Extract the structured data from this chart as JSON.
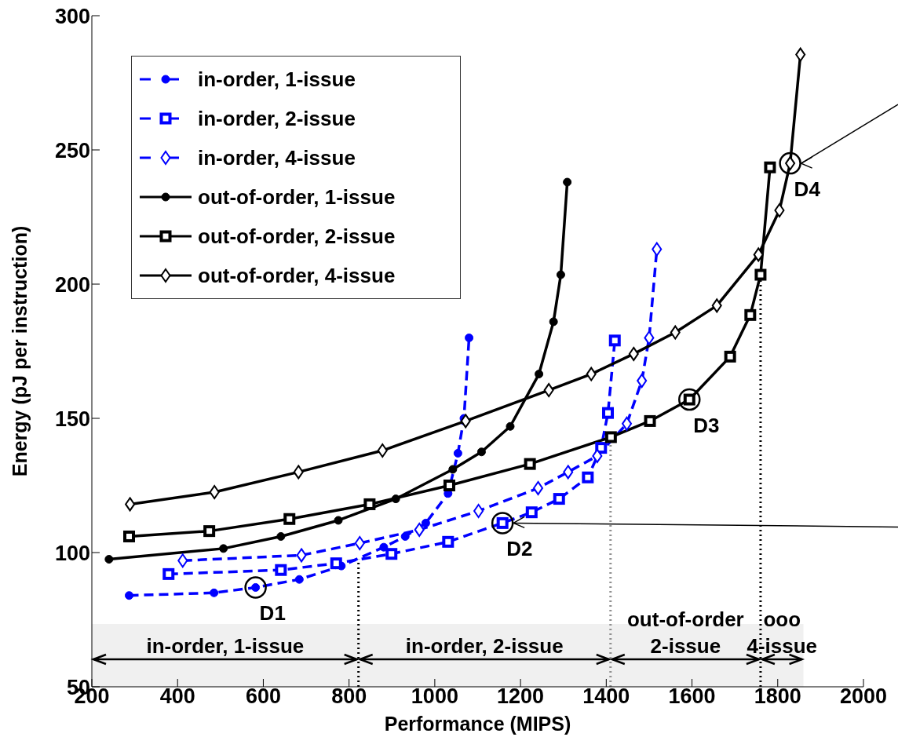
{
  "chart_data": {
    "type": "line",
    "xlabel": "Performance (MIPS)",
    "ylabel": "Energy (pJ per instruction)",
    "xlim": [
      200,
      2000
    ],
    "xticks": [
      200,
      400,
      600,
      800,
      1000,
      1200,
      1400,
      1600,
      1800,
      2000
    ],
    "ylim": [
      50,
      300
    ],
    "yticks": [
      50,
      100,
      150,
      200,
      250,
      300
    ],
    "grid": false,
    "legend": "top left",
    "series": [
      {
        "name": "in-order, 1-issue",
        "color": "#0000ff",
        "marker": "circle",
        "line_style": "dashed",
        "x": [
          287,
          485,
          582,
          684,
          782,
          881,
          931,
          979,
          1031,
          1054,
          1068,
          1080
        ],
        "values": [
          84,
          85,
          87,
          90,
          95,
          102,
          106,
          111,
          122,
          137,
          150,
          180
        ]
      },
      {
        "name": "in-order, 2-issue",
        "color": "#0000ff",
        "marker": "square",
        "line_style": "dashed",
        "x": [
          379,
          641,
          770,
          899,
          1031,
          1158,
          1226,
          1290,
          1357,
          1388,
          1404,
          1420
        ],
        "values": [
          92,
          93.5,
          96,
          99.5,
          104,
          111,
          115,
          120,
          128,
          139,
          152,
          179
        ]
      },
      {
        "name": "in-order, 4-issue",
        "color": "#0000ff",
        "marker": "diamond",
        "line_style": "dashed",
        "x": [
          412,
          689,
          825,
          964,
          1102,
          1241,
          1311,
          1379,
          1448,
          1483,
          1500,
          1518
        ],
        "values": [
          97,
          99,
          103.5,
          108.5,
          115.5,
          124,
          130,
          136,
          148,
          164,
          180,
          213
        ]
      },
      {
        "name": "out-of-order, 1-issue",
        "color": "#000000",
        "marker": "circle",
        "line_style": "solid",
        "x": [
          240,
          507,
          641,
          775,
          909,
          1042,
          1109,
          1176,
          1243,
          1277,
          1294,
          1309
        ],
        "values": [
          97.5,
          101.5,
          106,
          112,
          120,
          131,
          137.5,
          147,
          166.5,
          186,
          203.5,
          238
        ]
      },
      {
        "name": "out-of-order, 2-issue",
        "color": "#000000",
        "marker": "square",
        "line_style": "solid",
        "x": [
          287,
          474,
          661,
          848,
          1034,
          1222,
          1411,
          1502,
          1594,
          1689,
          1736,
          1760,
          1782
        ],
        "values": [
          106,
          108,
          112.5,
          118,
          125,
          133,
          143,
          149,
          157,
          173,
          188.5,
          203.5,
          243.5
        ]
      },
      {
        "name": "out-of-order, 4-issue",
        "color": "#000000",
        "marker": "diamond",
        "line_style": "solid",
        "x": [
          289,
          486,
          682,
          878,
          1072,
          1266,
          1365,
          1464,
          1561,
          1658,
          1755,
          1804,
          1829,
          1853
        ],
        "values": [
          118,
          122.5,
          130,
          138,
          149,
          160.5,
          166.5,
          174,
          182,
          192,
          211,
          227.5,
          245,
          285.5
        ]
      }
    ],
    "ref_lines": [
      {
        "axis": "x",
        "value": 822,
        "color": "#000000",
        "line_style": "dotted"
      },
      {
        "axis": "x",
        "value": 1410,
        "color": "#909090",
        "line_style": "dotted"
      },
      {
        "axis": "x",
        "value": 1760,
        "color": "#000000",
        "line_style": "dotted"
      }
    ],
    "bands": [
      {
        "axis": "x",
        "from": 200,
        "to": 822,
        "label": "in-order, 1-issue",
        "color": "#f0f0f0"
      },
      {
        "axis": "x",
        "from": 822,
        "to": 1410,
        "label": "in-order, 2-issue",
        "color": "#f0f0f0"
      },
      {
        "axis": "x",
        "from": 1410,
        "to": 1760,
        "label": "out-of-order\n2-issue",
        "color": "#f0f0f0"
      },
      {
        "axis": "x",
        "from": 1760,
        "to": 1860,
        "label": "ooo\n4-issue",
        "color": "#f0f0f0"
      }
    ],
    "annotations": [
      {
        "text": "D1",
        "x": 582,
        "y": 87
      },
      {
        "text": "D2",
        "x": 1158,
        "y": 111
      },
      {
        "text": "D3",
        "x": 1594,
        "y": 157
      },
      {
        "text": "D4",
        "x": 1829,
        "y": 245
      }
    ]
  }
}
